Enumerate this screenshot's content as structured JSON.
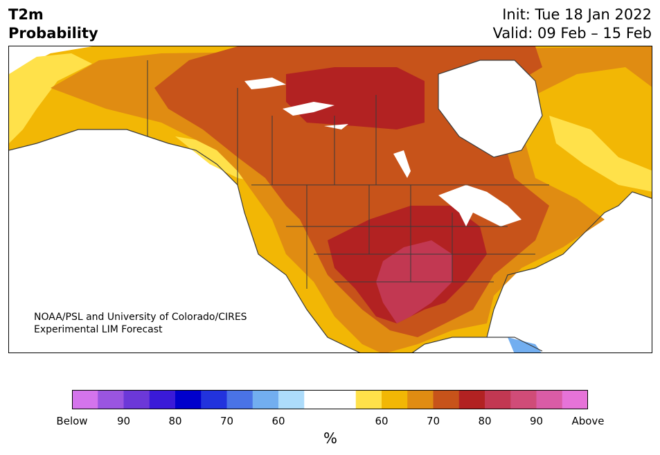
{
  "header": {
    "title_line1": "T2m",
    "title_line2": "Probability",
    "init_label": "Init: Tue 18 Jan 2022",
    "valid_label": "Valid: 09 Feb – 15 Feb"
  },
  "map": {
    "credit_line1": "NOAA/PSL and University of Colorado/CIRES",
    "credit_line2": "Experimental LIM Forecast"
  },
  "colorbar": {
    "colors": [
      "#d474ec",
      "#9a55e0",
      "#6c38d8",
      "#3a1ad8",
      "#0000cc",
      "#2233dd",
      "#4a73e6",
      "#72aef0",
      "#addcfb",
      "#ffffff",
      "#ffffff",
      "#ffe14a",
      "#f2b705",
      "#e08c12",
      "#c7531a",
      "#b22222",
      "#c23852",
      "#d04c78",
      "#da5ca6",
      "#e673d8"
    ],
    "tick_labels": [
      "Below",
      "90",
      "80",
      "70",
      "60",
      "",
      "60",
      "70",
      "80",
      "90",
      "Above"
    ],
    "unit": "%"
  },
  "legend_colors": {
    "p50_60": "#ffe14a",
    "p60_65": "#f2b705",
    "p65_70": "#e08c12",
    "p70_75": "#c7531a",
    "p75_80": "#b22222",
    "p80_85": "#c23852",
    "below_60": "#72aef0"
  }
}
